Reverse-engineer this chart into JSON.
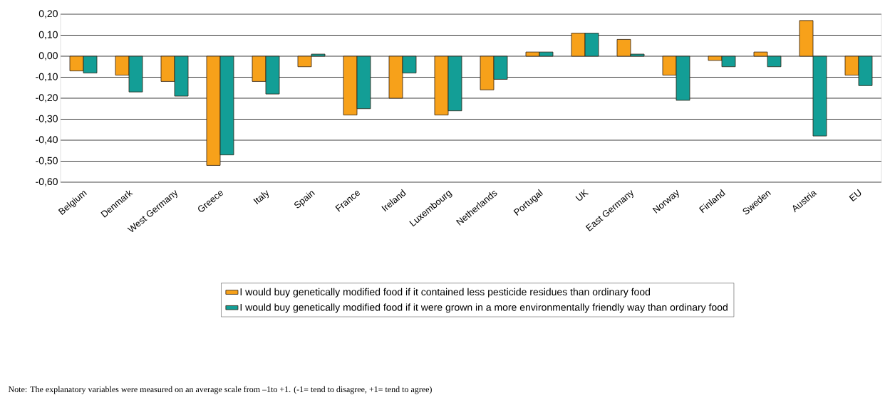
{
  "chart_data": {
    "type": "bar",
    "categories": [
      "Belgium",
      "Denmark",
      "West Germany",
      "Greece",
      "Italy",
      "Spain",
      "France",
      "Ireland",
      "Luxembourg",
      "Netherlands",
      "Portugal",
      "UK",
      "East Germany",
      "Norway",
      "Finland",
      "Sweden",
      "Austria",
      "EU"
    ],
    "series": [
      {
        "name": "I would buy genetically modified food if it contained less pesticide residues than ordinary food",
        "color": "#f7a11a",
        "values": [
          -0.07,
          -0.09,
          -0.12,
          -0.52,
          -0.12,
          -0.05,
          -0.28,
          -0.2,
          -0.28,
          -0.16,
          0.02,
          0.11,
          0.08,
          -0.09,
          -0.02,
          0.02,
          0.17,
          -0.09
        ]
      },
      {
        "name": "I would buy genetically modified food if it were grown in a more environmentally friendly way than ordinary food",
        "color": "#139e96",
        "values": [
          -0.08,
          -0.17,
          -0.19,
          -0.47,
          -0.18,
          0.01,
          -0.25,
          -0.08,
          -0.26,
          -0.11,
          0.02,
          0.11,
          0.01,
          -0.21,
          -0.05,
          -0.05,
          -0.38,
          -0.14
        ]
      }
    ],
    "ylim": [
      -0.6,
      0.2
    ],
    "yticks": [
      {
        "value": -0.6,
        "label": "-0,60"
      },
      {
        "value": -0.5,
        "label": "-0,50"
      },
      {
        "value": -0.4,
        "label": "-0,40"
      },
      {
        "value": -0.3,
        "label": "-0,30"
      },
      {
        "value": -0.2,
        "label": "-0,20"
      },
      {
        "value": -0.1,
        "label": "-0,10"
      },
      {
        "value": 0,
        "label": "0,00"
      },
      {
        "value": 0.1,
        "label": "0,10"
      },
      {
        "value": 0.2,
        "label": "0,20"
      }
    ],
    "grid": "y",
    "legend": "bottom",
    "annotations": [
      "Note: The explanatory variables were measured on an average scale from –1to +1. (-1= tend to disagree, +1= tend to agree)"
    ]
  }
}
